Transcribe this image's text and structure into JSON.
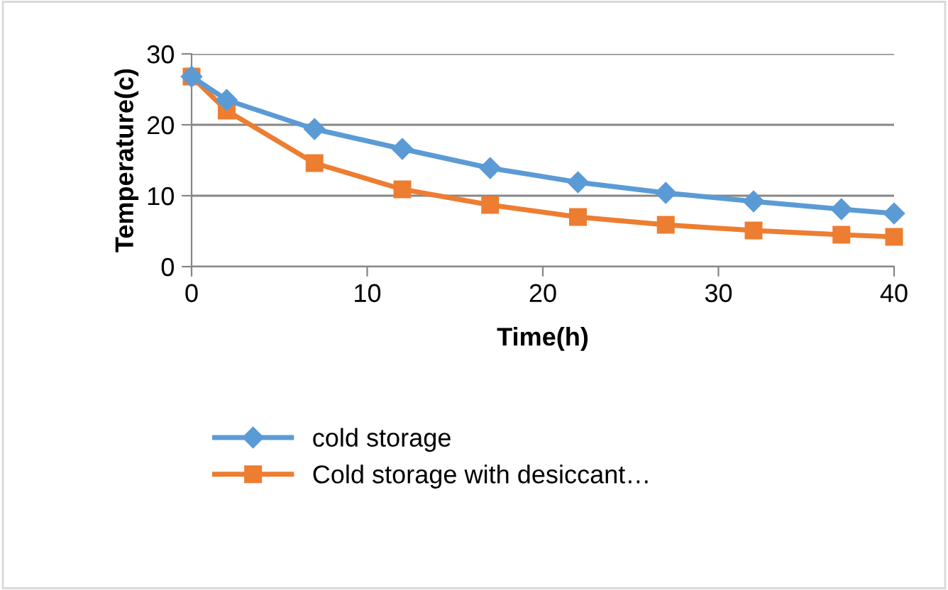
{
  "chart_data": {
    "type": "line",
    "xlabel": "Time(h)",
    "ylabel": "Temperature(c)",
    "x": [
      0,
      2,
      7,
      12,
      17,
      22,
      27,
      32,
      37,
      40
    ],
    "series": [
      {
        "name": "cold storage",
        "color": "#5b9bd5",
        "marker": "diamond",
        "values": [
          26.8,
          23.5,
          19.4,
          16.6,
          13.9,
          11.9,
          10.4,
          9.2,
          8.1,
          7.5
        ]
      },
      {
        "name": "Cold storage with desiccant…",
        "color": "#ed7d31",
        "marker": "square",
        "values": [
          26.8,
          22.0,
          14.6,
          10.9,
          8.7,
          7.0,
          5.9,
          5.1,
          4.5,
          4.2
        ]
      }
    ],
    "xlim": [
      0,
      40
    ],
    "xticks": [
      0,
      10,
      20,
      30,
      40
    ],
    "ylim": [
      0,
      30
    ],
    "yticks": [
      0,
      10,
      20,
      30
    ],
    "grid": "y",
    "legend": "bottom",
    "line_style": "solid"
  }
}
